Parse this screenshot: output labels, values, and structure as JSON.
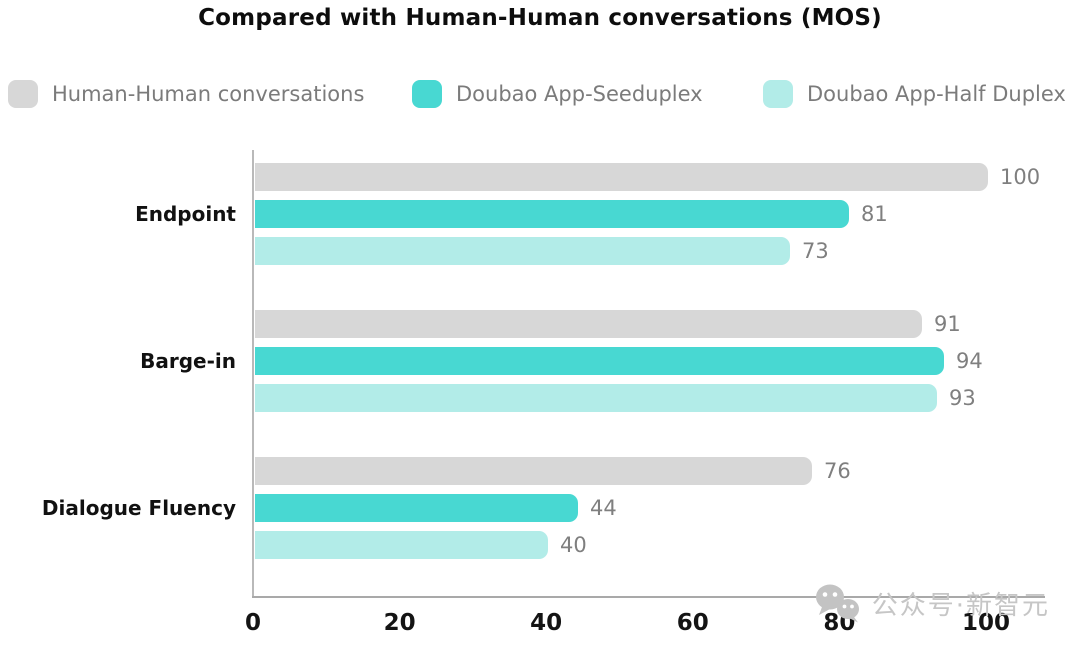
{
  "chart_data": {
    "type": "bar",
    "orientation": "horizontal",
    "title": "Compared with Human-Human conversations (MOS)",
    "categories": [
      "Endpoint",
      "Barge-in",
      "Dialogue Fluency"
    ],
    "series": [
      {
        "name": "Human-Human conversations",
        "color": "#d7d7d7",
        "values": [
          100,
          91,
          76
        ]
      },
      {
        "name": "Doubao App-Seeduplex",
        "color": "#48d8d2",
        "values": [
          81,
          94,
          44
        ]
      },
      {
        "name": "Doubao App-Half Duplex",
        "color": "#b2ece8",
        "values": [
          73,
          93,
          40
        ]
      }
    ],
    "xticks": [
      0,
      20,
      40,
      60,
      80,
      100
    ],
    "xlim": [
      0,
      100
    ],
    "grid": false,
    "legend_position": "top",
    "value_labels": true
  },
  "watermark": {
    "text": "公众号·新智元",
    "icon": "wechat-icon"
  },
  "colors": {
    "axis": "#b9b9b9",
    "value_label": "#7f7f7f",
    "legend_text": "#7b7b7b",
    "tick_label": "#141414",
    "category_label": "#111111",
    "watermark": "#c6c6c6",
    "title": "#0d0d0d"
  }
}
